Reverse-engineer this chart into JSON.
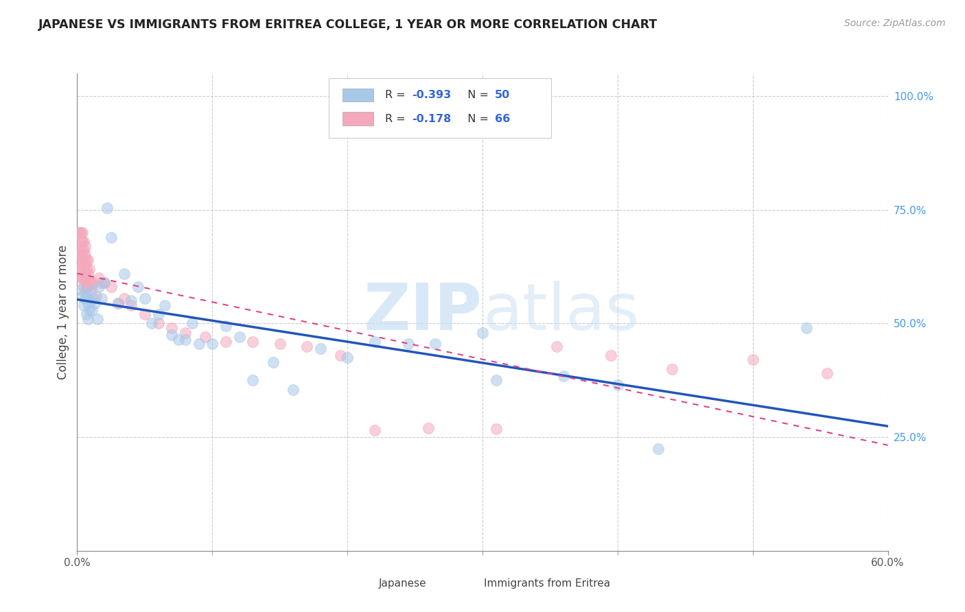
{
  "title": "JAPANESE VS IMMIGRANTS FROM ERITREA COLLEGE, 1 YEAR OR MORE CORRELATION CHART",
  "source": "Source: ZipAtlas.com",
  "ylabel": "College, 1 year or more",
  "xlim": [
    0.0,
    0.6
  ],
  "ylim": [
    0.0,
    1.05
  ],
  "yticks_right": [
    0.25,
    0.5,
    0.75,
    1.0
  ],
  "yticklabels_right": [
    "25.0%",
    "50.0%",
    "75.0%",
    "100.0%"
  ],
  "japanese_R": -0.393,
  "japanese_N": 50,
  "eritrea_R": -0.178,
  "eritrea_N": 66,
  "japanese_color": "#a8c8e8",
  "eritrea_color": "#f4a8bc",
  "japanese_line_color": "#2255bb",
  "eritrea_line_color": "#dd4488",
  "watermark_zip": "ZIP",
  "watermark_atlas": "atlas",
  "background_color": "#ffffff",
  "japanese_x": [
    0.003,
    0.004,
    0.005,
    0.006,
    0.007,
    0.007,
    0.008,
    0.008,
    0.009,
    0.01,
    0.01,
    0.011,
    0.012,
    0.013,
    0.015,
    0.016,
    0.018,
    0.02,
    0.022,
    0.025,
    0.03,
    0.035,
    0.04,
    0.045,
    0.05,
    0.055,
    0.06,
    0.065,
    0.07,
    0.075,
    0.08,
    0.085,
    0.09,
    0.1,
    0.11,
    0.12,
    0.13,
    0.145,
    0.16,
    0.18,
    0.2,
    0.22,
    0.245,
    0.265,
    0.3,
    0.31,
    0.36,
    0.4,
    0.43,
    0.54
  ],
  "japanese_y": [
    0.575,
    0.56,
    0.54,
    0.555,
    0.52,
    0.56,
    0.51,
    0.545,
    0.53,
    0.55,
    0.57,
    0.53,
    0.555,
    0.545,
    0.51,
    0.58,
    0.555,
    0.59,
    0.755,
    0.69,
    0.545,
    0.61,
    0.55,
    0.58,
    0.555,
    0.5,
    0.52,
    0.54,
    0.475,
    0.465,
    0.465,
    0.5,
    0.455,
    0.455,
    0.495,
    0.47,
    0.375,
    0.415,
    0.355,
    0.445,
    0.425,
    0.46,
    0.455,
    0.455,
    0.48,
    0.375,
    0.385,
    0.365,
    0.225,
    0.49
  ],
  "eritrea_x": [
    0.001,
    0.001,
    0.001,
    0.002,
    0.002,
    0.002,
    0.003,
    0.003,
    0.003,
    0.003,
    0.004,
    0.004,
    0.004,
    0.004,
    0.004,
    0.004,
    0.005,
    0.005,
    0.005,
    0.005,
    0.005,
    0.005,
    0.006,
    0.006,
    0.006,
    0.006,
    0.006,
    0.006,
    0.007,
    0.007,
    0.007,
    0.007,
    0.008,
    0.008,
    0.008,
    0.009,
    0.009,
    0.01,
    0.011,
    0.012,
    0.014,
    0.016,
    0.018,
    0.02,
    0.025,
    0.03,
    0.035,
    0.04,
    0.05,
    0.06,
    0.07,
    0.08,
    0.095,
    0.11,
    0.13,
    0.15,
    0.17,
    0.195,
    0.22,
    0.26,
    0.31,
    0.355,
    0.395,
    0.44,
    0.5,
    0.555
  ],
  "eritrea_y": [
    0.6,
    0.65,
    0.7,
    0.62,
    0.66,
    0.7,
    0.62,
    0.65,
    0.68,
    0.7,
    0.6,
    0.63,
    0.64,
    0.66,
    0.68,
    0.7,
    0.58,
    0.6,
    0.62,
    0.64,
    0.66,
    0.68,
    0.57,
    0.59,
    0.61,
    0.63,
    0.65,
    0.67,
    0.58,
    0.6,
    0.62,
    0.64,
    0.58,
    0.61,
    0.64,
    0.59,
    0.62,
    0.59,
    0.58,
    0.59,
    0.56,
    0.6,
    0.59,
    0.59,
    0.58,
    0.545,
    0.555,
    0.54,
    0.52,
    0.5,
    0.49,
    0.48,
    0.47,
    0.46,
    0.46,
    0.455,
    0.45,
    0.43,
    0.265,
    0.27,
    0.268,
    0.45,
    0.43,
    0.4,
    0.42,
    0.39
  ]
}
